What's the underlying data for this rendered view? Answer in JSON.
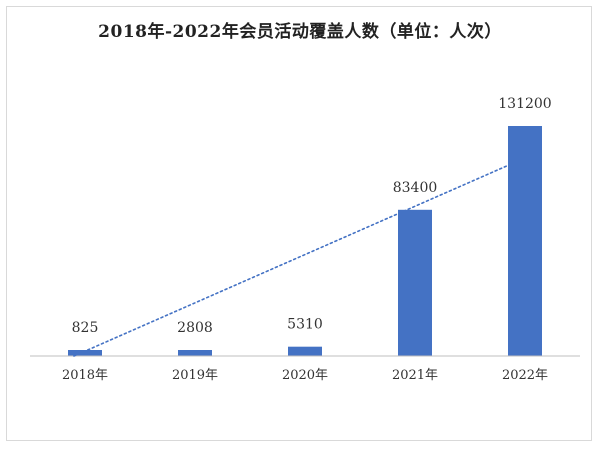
{
  "chart_data": {
    "type": "bar",
    "title": "2018年-2022年会员活动覆盖人数（单位：人次）",
    "categories": [
      "2018年",
      "2019年",
      "2020年",
      "2021年",
      "2022年"
    ],
    "values": [
      825,
      2808,
      5310,
      83400,
      131200
    ],
    "data_labels": [
      "825",
      "2808",
      "5310",
      "83400",
      "131200"
    ],
    "xlabel": "",
    "ylabel": "",
    "y_axis_shown": false,
    "grid": false,
    "trendline": "linear",
    "colors": {
      "bar": "#4472c4",
      "trendline": "#4472c4",
      "axis": "#bfbfbf"
    }
  }
}
